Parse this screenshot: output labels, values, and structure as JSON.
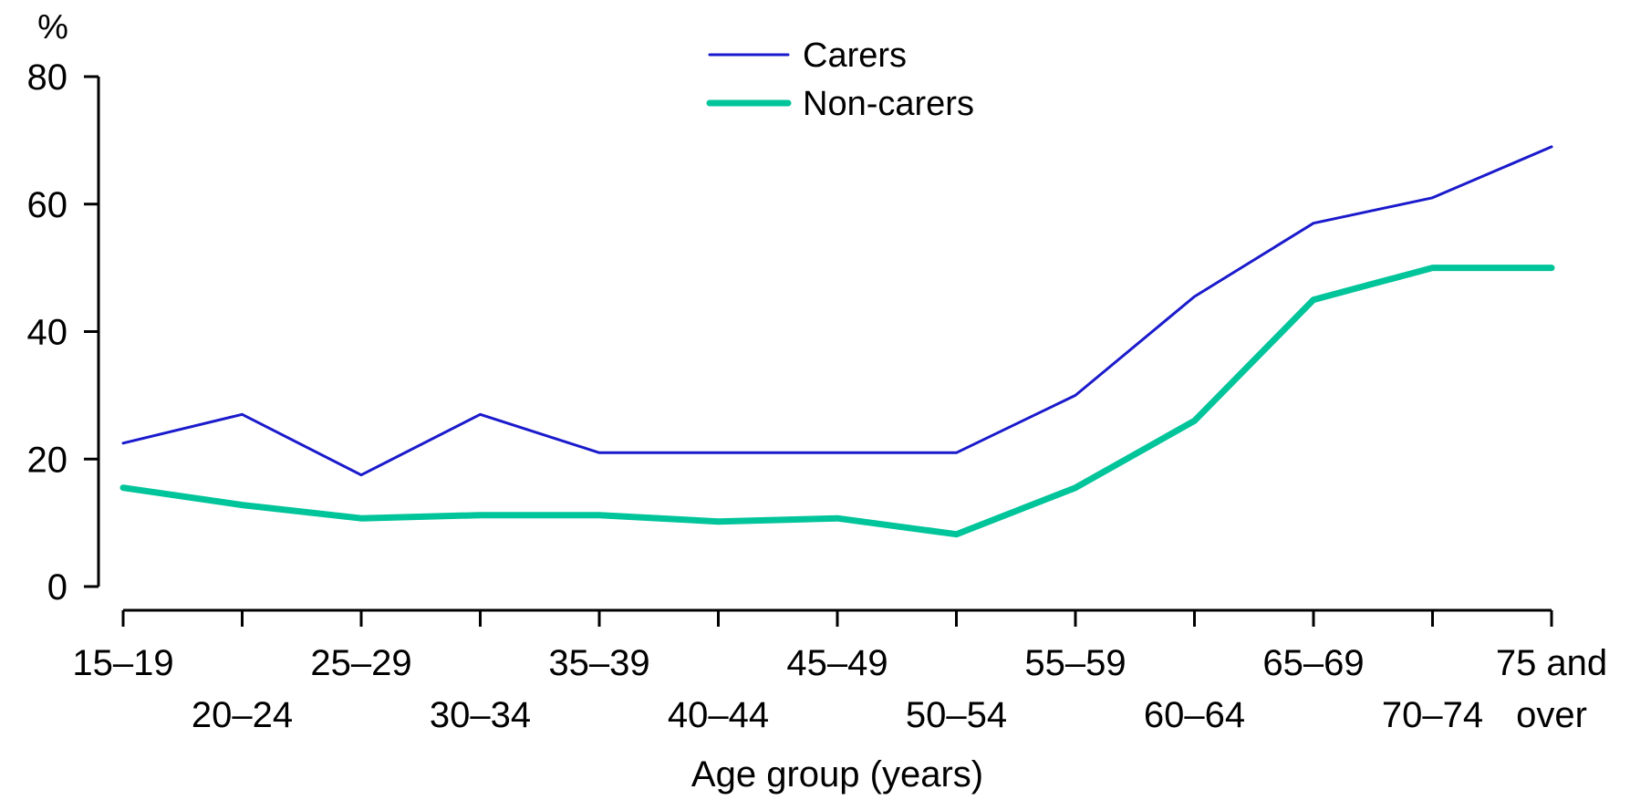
{
  "chart_data": {
    "type": "line",
    "y_unit": "%",
    "xlabel": "Age group (years)",
    "ylim": [
      0,
      80
    ],
    "y_ticks": [
      0,
      20,
      40,
      60,
      80
    ],
    "grid": false,
    "legend_position": "top-center",
    "categories": [
      [
        "15–19"
      ],
      [
        "20–24"
      ],
      [
        "25–29"
      ],
      [
        "30–34"
      ],
      [
        "35–39"
      ],
      [
        "40–44"
      ],
      [
        "45–49"
      ],
      [
        "50–54"
      ],
      [
        "55–59"
      ],
      [
        "60–64"
      ],
      [
        "65–69"
      ],
      [
        "70–74"
      ],
      [
        "75 and",
        "over"
      ]
    ],
    "series": [
      {
        "name": "Carers",
        "color": "#1a1acc",
        "values": [
          22.5,
          27,
          17.5,
          27,
          21,
          21,
          21,
          21,
          30,
          45.5,
          57,
          61,
          69
        ]
      },
      {
        "name": "Non-carers",
        "color": "#00c49a",
        "values": [
          15.5,
          12.8,
          10.7,
          11.2,
          11.2,
          10.2,
          10.7,
          8.2,
          15.5,
          26,
          45,
          50,
          50
        ]
      }
    ]
  }
}
